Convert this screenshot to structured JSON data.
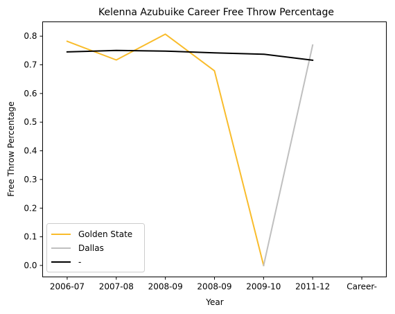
{
  "chart_data": {
    "type": "line",
    "title": "Kelenna Azubuike Career Free Throw Percentage",
    "xlabel": "Year",
    "ylabel": "Free Throw Percentage",
    "categories": [
      "2006-07",
      "2007-08",
      "2008-09",
      "2008-09",
      "2009-10",
      "2011-12",
      "Career-"
    ],
    "ylim": [
      -0.04,
      0.85
    ],
    "yticks": [
      0.0,
      0.1,
      0.2,
      0.3,
      0.4,
      0.5,
      0.6,
      0.7,
      0.8
    ],
    "ytick_labels": [
      "0.0",
      "0.1",
      "0.2",
      "0.3",
      "0.4",
      "0.5",
      "0.6",
      "0.7",
      "0.8"
    ],
    "series": [
      {
        "name": "Golden State",
        "color": "#f9bc2b",
        "points": [
          {
            "x": 0,
            "y": 0.782
          },
          {
            "x": 1,
            "y": 0.717
          },
          {
            "x": 2,
            "y": 0.807
          },
          {
            "x": 3,
            "y": 0.679
          },
          {
            "x": 4,
            "y": 0.0
          }
        ]
      },
      {
        "name": "Dallas",
        "color": "#bfbfbf",
        "points": [
          {
            "x": 4,
            "y": 0.0
          },
          {
            "x": 5,
            "y": 0.769
          }
        ]
      },
      {
        "name": "-",
        "color": "#000000",
        "points": [
          {
            "x": 0,
            "y": 0.745
          },
          {
            "x": 1,
            "y": 0.75
          },
          {
            "x": 2,
            "y": 0.748
          },
          {
            "x": 3,
            "y": 0.742
          },
          {
            "x": 4,
            "y": 0.737
          },
          {
            "x": 5,
            "y": 0.716
          }
        ]
      }
    ],
    "legend": "lower-left",
    "grid": false
  }
}
